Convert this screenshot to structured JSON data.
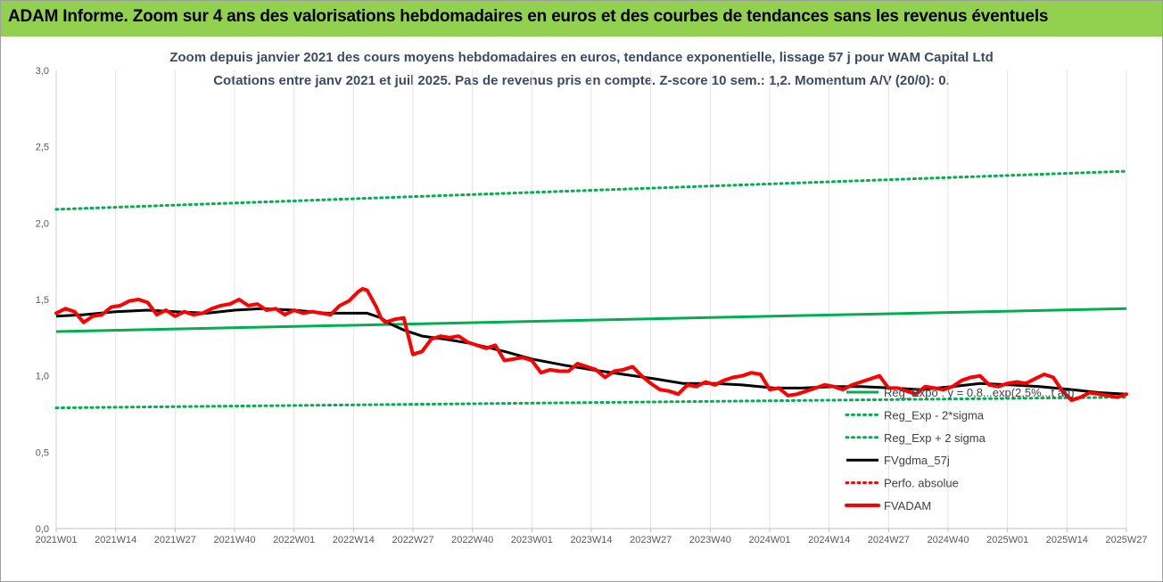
{
  "banner": {
    "title": "ADAM Informe. Zoom sur 4 ans des valorisations hebdomadaires en euros et des courbes de tendances sans les revenus éventuels"
  },
  "colors": {
    "banner_bg": "#92d050",
    "green": "#00b050",
    "black": "#000000",
    "red": "#ff0000",
    "grid": "#e4e4e4"
  },
  "chart_data": {
    "type": "line",
    "title": "Zoom depuis janvier 2021 des cours moyens hebdomadaires en euros, tendance exponentielle, lissage 57 j pour WAM Capital Ltd",
    "subtitle": "Cotations entre janv 2021 et juil 2025. Pas de revenus pris en compte. Z-score 10 sem.: 1,2. Momentum A/V (20/0): 0.",
    "xlabel": "",
    "ylabel": "",
    "ylim": [
      0,
      3
    ],
    "yticks": [
      "0,0",
      "0,5",
      "1,0",
      "1,5",
      "2,0",
      "2,5",
      "3,0"
    ],
    "grid": "vertical",
    "legend_position": "bottom-right",
    "x_ticks": [
      "2021W01",
      "2021W14",
      "2021W27",
      "2021W40",
      "2022W01",
      "2022W14",
      "2022W27",
      "2022W40",
      "2023W01",
      "2023W14",
      "2023W27",
      "2023W40",
      "2024W01",
      "2024W14",
      "2024W27",
      "2024W40",
      "2025W01",
      "2025W14",
      "2025W27"
    ],
    "x_range_weeks": [
      0,
      234
    ],
    "annotation": "Reg_Expo : y = 0,8...exp(2,5%...t an)",
    "series": [
      {
        "name": "Reg_Exp - 2*sigma",
        "style": "dotted",
        "color": "#00b050",
        "x": [
          0,
          234
        ],
        "values": [
          0.79,
          0.86
        ]
      },
      {
        "name": "Reg_Exp + 2 sigma",
        "style": "dotted",
        "color": "#00b050",
        "x": [
          0,
          234
        ],
        "values": [
          2.09,
          2.34
        ]
      },
      {
        "name": "Reg_Expo",
        "style": "solid",
        "color": "#00b050",
        "x": [
          0,
          234
        ],
        "values": [
          1.29,
          1.44
        ]
      },
      {
        "name": "FVgdma_57j",
        "style": "solid",
        "color": "#000000",
        "x": [
          0,
          6,
          13,
          20,
          26,
          33,
          39,
          45,
          52,
          59,
          65,
          68,
          71,
          73,
          76,
          80,
          85,
          91,
          98,
          104,
          111,
          117,
          124,
          131,
          137,
          144,
          150,
          157,
          163,
          170,
          176,
          183,
          189,
          196,
          202,
          209,
          215,
          222,
          228,
          234
        ],
        "values": [
          1.39,
          1.4,
          1.42,
          1.43,
          1.42,
          1.41,
          1.43,
          1.44,
          1.43,
          1.41,
          1.41,
          1.41,
          1.38,
          1.34,
          1.3,
          1.26,
          1.24,
          1.21,
          1.16,
          1.11,
          1.07,
          1.04,
          1.01,
          0.98,
          0.95,
          0.95,
          0.94,
          0.92,
          0.92,
          0.93,
          0.93,
          0.92,
          0.91,
          0.93,
          0.95,
          0.94,
          0.93,
          0.91,
          0.89,
          0.88
        ]
      },
      {
        "name": "FVADAM",
        "style": "solid-thick",
        "color": "#ff0000",
        "x": [
          0,
          2,
          4,
          6,
          8,
          10,
          12,
          14,
          16,
          18,
          20,
          22,
          24,
          26,
          28,
          30,
          32,
          34,
          36,
          38,
          40,
          42,
          44,
          46,
          48,
          50,
          52,
          54,
          56,
          58,
          60,
          62,
          64,
          66,
          67,
          68,
          70,
          71,
          72,
          74,
          76,
          78,
          80,
          82,
          84,
          86,
          88,
          90,
          92,
          94,
          96,
          98,
          100,
          102,
          104,
          106,
          108,
          110,
          112,
          114,
          116,
          118,
          120,
          122,
          124,
          126,
          128,
          130,
          132,
          134,
          136,
          138,
          140,
          142,
          144,
          146,
          148,
          150,
          152,
          154,
          156,
          158,
          160,
          162,
          164,
          166,
          168,
          170,
          172,
          174,
          176,
          178,
          180,
          182,
          184,
          186,
          188,
          190,
          192,
          194,
          196,
          198,
          200,
          202,
          204,
          206,
          208,
          210,
          212,
          214,
          216,
          218,
          220,
          222,
          224,
          226,
          228,
          230,
          232,
          234
        ],
        "values": [
          1.41,
          1.44,
          1.42,
          1.35,
          1.39,
          1.4,
          1.45,
          1.46,
          1.49,
          1.5,
          1.48,
          1.4,
          1.43,
          1.39,
          1.42,
          1.4,
          1.41,
          1.44,
          1.46,
          1.47,
          1.5,
          1.46,
          1.47,
          1.43,
          1.44,
          1.4,
          1.43,
          1.41,
          1.42,
          1.41,
          1.4,
          1.46,
          1.49,
          1.55,
          1.57,
          1.56,
          1.45,
          1.38,
          1.35,
          1.37,
          1.38,
          1.14,
          1.16,
          1.24,
          1.26,
          1.25,
          1.26,
          1.22,
          1.2,
          1.18,
          1.2,
          1.1,
          1.11,
          1.12,
          1.1,
          1.02,
          1.04,
          1.03,
          1.03,
          1.08,
          1.06,
          1.04,
          0.99,
          1.03,
          1.04,
          1.06,
          1.0,
          0.95,
          0.91,
          0.9,
          0.88,
          0.94,
          0.93,
          0.96,
          0.94,
          0.97,
          0.99,
          1.0,
          1.02,
          1.01,
          0.91,
          0.92,
          0.87,
          0.88,
          0.9,
          0.92,
          0.94,
          0.93,
          0.91,
          0.94,
          0.96,
          0.98,
          1.0,
          0.92,
          0.92,
          0.9,
          0.88,
          0.93,
          0.92,
          0.91,
          0.93,
          0.97,
          0.99,
          1.0,
          0.94,
          0.93,
          0.95,
          0.96,
          0.95,
          0.98,
          1.01,
          0.99,
          0.9,
          0.84,
          0.86,
          0.89,
          0.88,
          0.87,
          0.86,
          0.88
        ]
      },
      {
        "name": "Perfo. absolue",
        "style": "dotted",
        "color": "#ff0000",
        "x": [],
        "values": []
      }
    ],
    "legend": [
      {
        "label": "Reg_Expo : y = 0,8...exp(2,5%...t an)",
        "style": "solid",
        "color": "#00b050"
      },
      {
        "label": "Reg_Exp - 2*sigma",
        "style": "dotted",
        "color": "#00b050"
      },
      {
        "label": "Reg_Exp + 2 sigma",
        "style": "dotted",
        "color": "#00b050"
      },
      {
        "label": "FVgdma_57j",
        "style": "solid",
        "color": "#000000"
      },
      {
        "label": "Perfo. absolue",
        "style": "dotted",
        "color": "#ff0000"
      },
      {
        "label": "FVADAM",
        "style": "solid-thick",
        "color": "#ff0000"
      }
    ]
  }
}
